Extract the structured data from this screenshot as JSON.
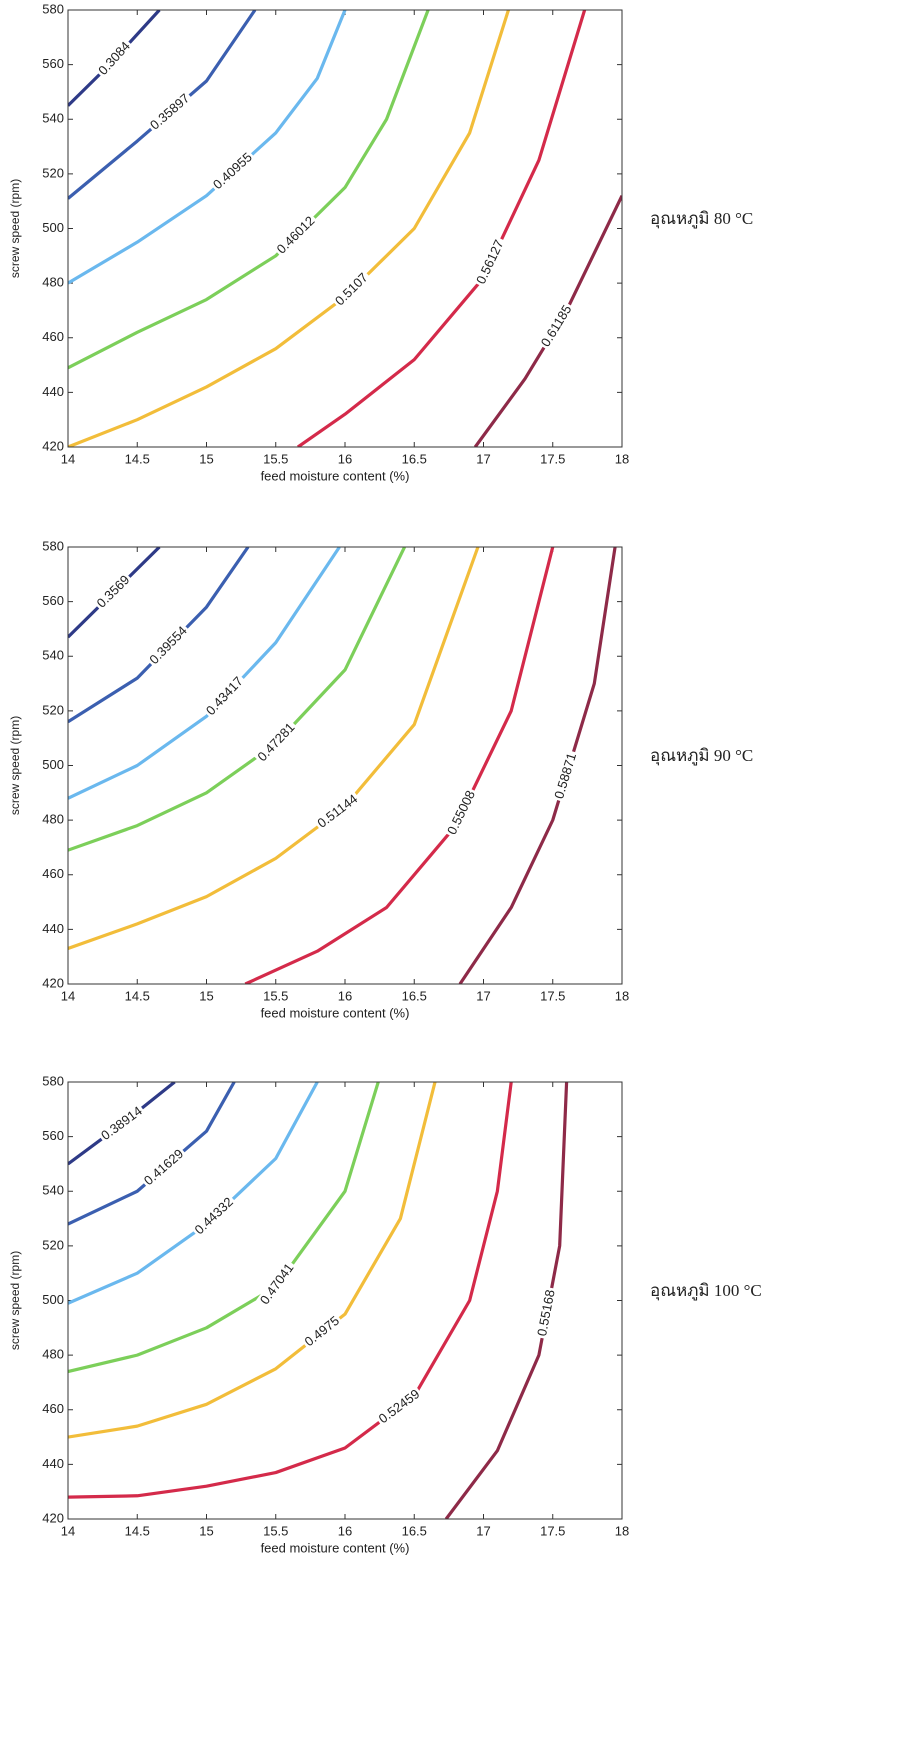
{
  "chart_data": [
    {
      "type": "contour",
      "label": "อุณหภูมิ 80 °C",
      "xlabel": "feed moisture content (%)",
      "ylabel": "screw speed (rpm)",
      "xlim": [
        14,
        18
      ],
      "ylim": [
        420,
        580
      ],
      "xticks": [
        14,
        14.5,
        15,
        15.5,
        16,
        16.5,
        17,
        17.5,
        18
      ],
      "yticks": [
        420,
        440,
        460,
        480,
        500,
        520,
        540,
        560,
        580
      ],
      "series": [
        {
          "name": "0.3084",
          "color": "#2e3a87",
          "x": [
            14,
            14.3,
            14.66
          ],
          "values": [
            545,
            560,
            580
          ]
        },
        {
          "name": "0.35897",
          "color": "#3b5fb0",
          "x": [
            14,
            14.5,
            15,
            15.35
          ],
          "values": [
            511,
            532,
            554,
            580
          ]
        },
        {
          "name": "0.40955",
          "color": "#6ab8ee",
          "x": [
            14,
            14.5,
            15,
            15.5,
            15.8,
            16
          ],
          "values": [
            480,
            495,
            512,
            535,
            555,
            580
          ]
        },
        {
          "name": "0.46012",
          "color": "#7ccf5a",
          "x": [
            14,
            14.5,
            15,
            15.5,
            16,
            16.3,
            16.6
          ],
          "values": [
            449,
            462,
            474,
            490,
            515,
            540,
            580
          ]
        },
        {
          "name": "0.5107",
          "color": "#f2bd3a",
          "x": [
            14,
            14.5,
            15,
            15.5,
            16,
            16.5,
            16.9,
            17.18
          ],
          "values": [
            420,
            430,
            442,
            456,
            475,
            500,
            535,
            580
          ]
        },
        {
          "name": "0.56127",
          "color": "#d42a4a",
          "x": [
            15.66,
            16,
            16.5,
            17,
            17.4,
            17.73
          ],
          "values": [
            420,
            432,
            452,
            482,
            525,
            580
          ]
        },
        {
          "name": "0.61185",
          "color": "#8e2a48",
          "x": [
            16.94,
            17.3,
            17.6,
            18
          ],
          "values": [
            420,
            445,
            470,
            512
          ]
        }
      ]
    },
    {
      "type": "contour",
      "label": "อุณหภูมิ 90 °C",
      "xlabel": "feed moisture content (%)",
      "ylabel": "screw speed (rpm)",
      "xlim": [
        14,
        18
      ],
      "ylim": [
        420,
        580
      ],
      "xticks": [
        14,
        14.5,
        15,
        15.5,
        16,
        16.5,
        17,
        17.5,
        18
      ],
      "yticks": [
        420,
        440,
        460,
        480,
        500,
        520,
        540,
        560,
        580
      ],
      "series": [
        {
          "name": "0.3569",
          "color": "#2e3a87",
          "x": [
            14,
            14.3,
            14.66
          ],
          "values": [
            547,
            562,
            580
          ]
        },
        {
          "name": "0.39554",
          "color": "#3b5fb0",
          "x": [
            14,
            14.5,
            15,
            15.3
          ],
          "values": [
            516,
            532,
            558,
            580
          ]
        },
        {
          "name": "0.43417",
          "color": "#6ab8ee",
          "x": [
            14,
            14.5,
            15,
            15.5,
            15.96
          ],
          "values": [
            488,
            500,
            518,
            545,
            580
          ]
        },
        {
          "name": "0.47281",
          "color": "#7ccf5a",
          "x": [
            14,
            14.5,
            15,
            15.5,
            16,
            16.43
          ],
          "values": [
            469,
            478,
            490,
            508,
            535,
            580
          ]
        },
        {
          "name": "0.51144",
          "color": "#f2bd3a",
          "x": [
            14,
            14.5,
            15,
            15.5,
            16,
            16.5,
            16.96
          ],
          "values": [
            433,
            442,
            452,
            466,
            485,
            515,
            580
          ]
        },
        {
          "name": "0.55008",
          "color": "#d42a4a",
          "x": [
            15.28,
            15.8,
            16.3,
            16.8,
            17.2,
            17.5
          ],
          "values": [
            420,
            432,
            448,
            478,
            520,
            580
          ]
        },
        {
          "name": "0.58871",
          "color": "#8e2a48",
          "x": [
            16.83,
            17.2,
            17.5,
            17.8,
            17.95
          ],
          "values": [
            420,
            448,
            480,
            530,
            580
          ]
        }
      ]
    },
    {
      "type": "contour",
      "label": "อุณหภูมิ 100 °C",
      "xlabel": "feed moisture content (%)",
      "ylabel": "screw speed (rpm)",
      "xlim": [
        14,
        18
      ],
      "ylim": [
        420,
        580
      ],
      "xticks": [
        14,
        14.5,
        15,
        15.5,
        16,
        16.5,
        17,
        17.5,
        18
      ],
      "yticks": [
        420,
        440,
        460,
        480,
        500,
        520,
        540,
        560,
        580
      ],
      "series": [
        {
          "name": "0.38914",
          "color": "#2e3a87",
          "x": [
            14,
            14.4,
            14.77
          ],
          "values": [
            550,
            565,
            580
          ]
        },
        {
          "name": "0.41629",
          "color": "#3b5fb0",
          "x": [
            14,
            14.5,
            15,
            15.2
          ],
          "values": [
            528,
            540,
            562,
            580
          ]
        },
        {
          "name": "0.44332",
          "color": "#6ab8ee",
          "x": [
            14,
            14.5,
            15,
            15.5,
            15.8
          ],
          "values": [
            499,
            510,
            528,
            552,
            580
          ]
        },
        {
          "name": "0.47041",
          "color": "#7ccf5a",
          "x": [
            14,
            14.5,
            15,
            15.5,
            16,
            16.24
          ],
          "values": [
            474,
            480,
            490,
            505,
            540,
            580
          ]
        },
        {
          "name": "0.4975",
          "color": "#f2bd3a",
          "x": [
            14,
            14.5,
            15,
            15.5,
            16,
            16.4,
            16.65
          ],
          "values": [
            450,
            454,
            462,
            475,
            495,
            530,
            580
          ]
        },
        {
          "name": "0.52459",
          "color": "#d42a4a",
          "x": [
            14,
            14.5,
            15,
            15.5,
            16,
            16.5,
            16.9,
            17.1,
            17.2
          ],
          "values": [
            428,
            428.5,
            432,
            437,
            446,
            465,
            500,
            540,
            580
          ]
        },
        {
          "name": "0.55168",
          "color": "#8e2a48",
          "x": [
            16.73,
            17.1,
            17.4,
            17.55,
            17.6
          ],
          "values": [
            420,
            445,
            480,
            520,
            580
          ]
        }
      ]
    }
  ]
}
